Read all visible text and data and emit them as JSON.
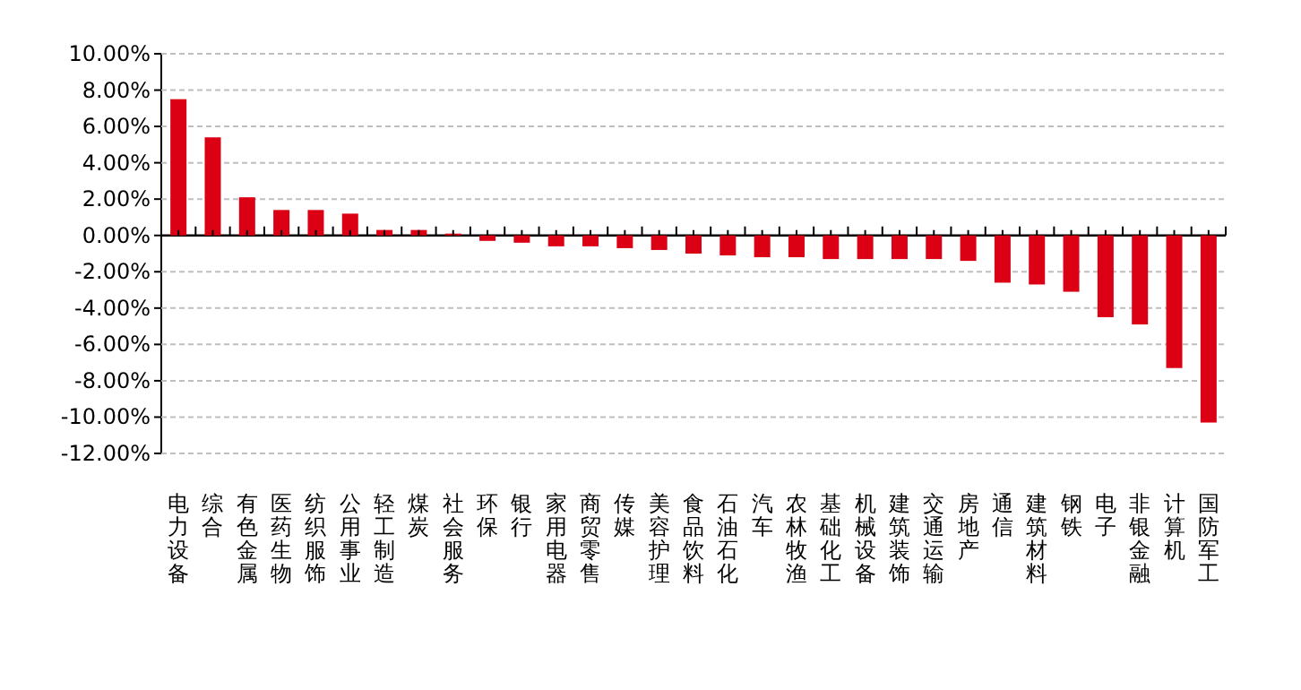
{
  "chart_data": {
    "type": "bar",
    "categories": [
      "电力设备",
      "综合",
      "有色金属",
      "医药生物",
      "纺织服饰",
      "公用事业",
      "轻工制造",
      "煤炭",
      "社会服务",
      "环保",
      "银行",
      "家用电器",
      "商贸零售",
      "传媒",
      "美容护理",
      "食品饮料",
      "石油石化",
      "汽车",
      "农林牧渔",
      "基础化工",
      "机械设备",
      "建筑装饰",
      "交通运输",
      "房地产",
      "通信",
      "建筑材料",
      "钢铁",
      "电子",
      "非银金融",
      "计算机",
      "国防军工"
    ],
    "values": [
      7.5,
      5.4,
      2.1,
      1.4,
      1.4,
      1.2,
      0.3,
      0.3,
      0.1,
      -0.3,
      -0.4,
      -0.6,
      -0.6,
      -0.7,
      -0.8,
      -1.0,
      -1.1,
      -1.2,
      -1.2,
      -1.3,
      -1.3,
      -1.3,
      -1.3,
      -1.4,
      -2.6,
      -2.7,
      -3.1,
      -4.5,
      -4.9,
      -7.3,
      -10.3
    ],
    "color": "#dc0015",
    "ylim": [
      -12,
      10
    ],
    "yticks": [
      {
        "value": -12,
        "label": "-12.00%"
      },
      {
        "value": -10,
        "label": "-10.00%"
      },
      {
        "value": -8,
        "label": "-8.00%"
      },
      {
        "value": -6,
        "label": "-6.00%"
      },
      {
        "value": -4,
        "label": "-4.00%"
      },
      {
        "value": -2,
        "label": "-2.00%"
      },
      {
        "value": 0,
        "label": "0.00%"
      },
      {
        "value": 2,
        "label": "2.00%"
      },
      {
        "value": 4,
        "label": "4.00%"
      },
      {
        "value": 6,
        "label": "6.00%"
      },
      {
        "value": 8,
        "label": "8.00%"
      },
      {
        "value": 10,
        "label": "10.00%"
      }
    ],
    "grid": "y"
  }
}
